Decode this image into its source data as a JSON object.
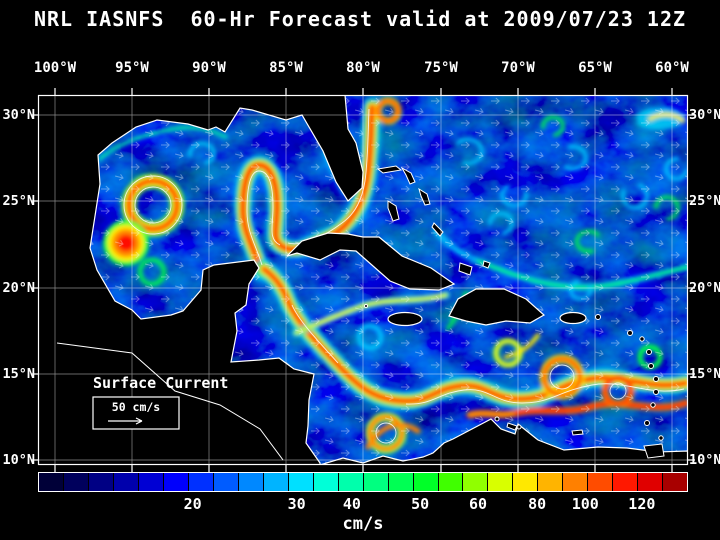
{
  "title": "NRL IASNFS  60-Hr Forecast valid at 2009/07/23 12Z",
  "axes": {
    "lon_labels": [
      "100°W",
      "95°W",
      "90°W",
      "85°W",
      "80°W",
      "75°W",
      "70°W",
      "65°W",
      "60°W"
    ],
    "lat_labels": [
      "30°N",
      "25°N",
      "20°N",
      "15°N",
      "10°N"
    ]
  },
  "map_annotations": {
    "label": "Surface Current",
    "scale_label": "50 cm/s"
  },
  "colorbar": {
    "unit": "cm/s",
    "tick_labels": [
      "20",
      "30",
      "40",
      "50",
      "60",
      "80",
      "100",
      "120"
    ],
    "tick_positions_pct": [
      23.8,
      39.8,
      48.3,
      58.8,
      67.7,
      76.8,
      84.2,
      92.9
    ],
    "colors": [
      "#000038",
      "#00005c",
      "#000084",
      "#0000ac",
      "#0000d4",
      "#0000fc",
      "#0030ff",
      "#005cff",
      "#0088ff",
      "#00b4ff",
      "#00e0ff",
      "#00ffd8",
      "#00ffac",
      "#00ff80",
      "#00ff54",
      "#00ff28",
      "#40ff00",
      "#90ff00",
      "#d8ff00",
      "#ffe800",
      "#ffb400",
      "#ff8000",
      "#ff4c00",
      "#ff1800",
      "#e00000",
      "#a80000"
    ]
  },
  "palette": {
    "background": "#000000",
    "ocean": "#000050",
    "land": "#000000",
    "coastline": "#ffffff",
    "grid": "#ffffff",
    "text": "#ffffff"
  }
}
